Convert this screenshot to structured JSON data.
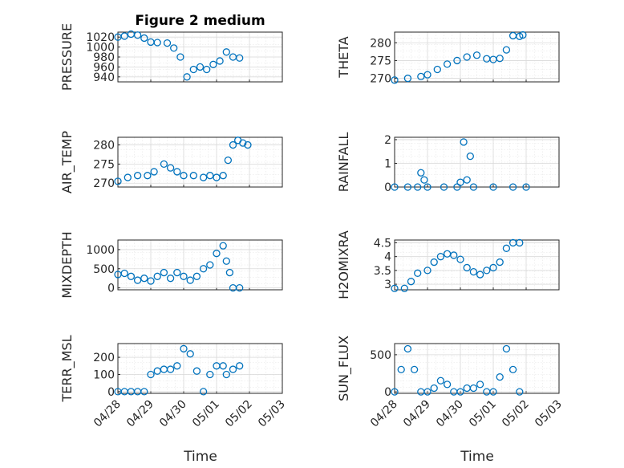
{
  "chart_data": [
    {
      "type": "scatter",
      "title": "Figure 2 medium",
      "ylabel": "PRESSURE",
      "xlabel": "",
      "ylim": [
        930,
        1030
      ],
      "yticks": [
        940,
        960,
        980,
        1000,
        1020
      ],
      "yticklabels": [
        "940",
        "960",
        "980",
        "1000",
        "1020"
      ],
      "xlim": [
        0,
        5
      ],
      "xticklabels": [
        "04/28",
        "04/29",
        "04/30",
        "05/01",
        "05/02",
        "05/03"
      ],
      "show_xticklabels": false,
      "grid": "on",
      "marker_color": "#0072bd",
      "series": [
        {
          "points": [
            [
              0,
              1020
            ],
            [
              0.2,
              1022
            ],
            [
              0.4,
              1026
            ],
            [
              0.6,
              1024
            ],
            [
              0.8,
              1018
            ],
            [
              1.0,
              1010
            ],
            [
              1.2,
              1009
            ],
            [
              1.5,
              1008
            ],
            [
              1.7,
              998
            ],
            [
              1.9,
              980
            ],
            [
              2.1,
              940
            ],
            [
              2.3,
              955
            ],
            [
              2.5,
              960
            ],
            [
              2.7,
              955
            ],
            [
              2.9,
              965
            ],
            [
              3.1,
              972
            ],
            [
              3.3,
              990
            ],
            [
              3.5,
              980
            ],
            [
              3.7,
              978
            ]
          ]
        }
      ]
    },
    {
      "type": "scatter",
      "ylabel": "THETA",
      "ylim": [
        269,
        283
      ],
      "yticks": [
        270,
        275,
        280
      ],
      "yticklabels": [
        "270",
        "275",
        "280"
      ],
      "xlim": [
        0,
        5
      ],
      "xticklabels": [
        "04/28",
        "04/29",
        "04/30",
        "05/01",
        "05/02",
        "05/03"
      ],
      "show_xticklabels": false,
      "grid": "on",
      "series": [
        {
          "points": [
            [
              0,
              269.5
            ],
            [
              0.4,
              270
            ],
            [
              0.8,
              270.5
            ],
            [
              1.0,
              271
            ],
            [
              1.3,
              272.5
            ],
            [
              1.6,
              274
            ],
            [
              1.9,
              275
            ],
            [
              2.2,
              276
            ],
            [
              2.5,
              276.5
            ],
            [
              2.8,
              275.5
            ],
            [
              3.0,
              275.3
            ],
            [
              3.2,
              275.6
            ],
            [
              3.4,
              278
            ],
            [
              3.6,
              282
            ],
            [
              3.8,
              281.8
            ],
            [
              3.9,
              282.2
            ]
          ]
        }
      ]
    },
    {
      "type": "scatter",
      "ylabel": "AIR_TEMP",
      "ylim": [
        269,
        282
      ],
      "yticks": [
        270,
        275,
        280
      ],
      "yticklabels": [
        "270",
        "275",
        "280"
      ],
      "xlim": [
        0,
        5
      ],
      "xticklabels": [
        "04/28",
        "04/29",
        "04/30",
        "05/01",
        "05/02",
        "05/03"
      ],
      "show_xticklabels": false,
      "grid": "on",
      "series": [
        {
          "points": [
            [
              0,
              270.5
            ],
            [
              0.3,
              271.5
            ],
            [
              0.6,
              272
            ],
            [
              0.9,
              272
            ],
            [
              1.1,
              273
            ],
            [
              1.4,
              275
            ],
            [
              1.6,
              274
            ],
            [
              1.8,
              273
            ],
            [
              2.0,
              272
            ],
            [
              2.3,
              272
            ],
            [
              2.6,
              271.5
            ],
            [
              2.8,
              272
            ],
            [
              3.0,
              271.5
            ],
            [
              3.2,
              272
            ],
            [
              3.35,
              276
            ],
            [
              3.5,
              280
            ],
            [
              3.65,
              281.2
            ],
            [
              3.8,
              280.5
            ],
            [
              3.95,
              280
            ]
          ]
        }
      ]
    },
    {
      "type": "scatter",
      "ylabel": "RAINFALL",
      "ylim": [
        0,
        2.1
      ],
      "yticks": [
        0,
        1,
        2
      ],
      "yticklabels": [
        "0",
        "1",
        "2"
      ],
      "xlim": [
        0,
        5
      ],
      "xticklabels": [
        "04/28",
        "04/29",
        "04/30",
        "05/01",
        "05/02",
        "05/03"
      ],
      "show_xticklabels": false,
      "grid": "on",
      "series": [
        {
          "points": [
            [
              0,
              0
            ],
            [
              0.4,
              0
            ],
            [
              0.7,
              0
            ],
            [
              0.8,
              0.6
            ],
            [
              0.9,
              0.3
            ],
            [
              1.0,
              0
            ],
            [
              1.5,
              0
            ],
            [
              1.9,
              0
            ],
            [
              2.0,
              0.2
            ],
            [
              2.1,
              1.9
            ],
            [
              2.2,
              0.3
            ],
            [
              2.3,
              1.3
            ],
            [
              2.4,
              0
            ],
            [
              3.0,
              0
            ],
            [
              3.6,
              0
            ],
            [
              4.0,
              0
            ]
          ]
        }
      ]
    },
    {
      "type": "scatter",
      "ylabel": "MIXDEPTH",
      "ylim": [
        -50,
        1250
      ],
      "yticks": [
        0,
        500,
        1000
      ],
      "yticklabels": [
        "0",
        "500",
        "1000"
      ],
      "xlim": [
        0,
        5
      ],
      "xticklabels": [
        "04/28",
        "04/29",
        "04/30",
        "05/01",
        "05/02",
        "05/03"
      ],
      "show_xticklabels": false,
      "grid": "on",
      "series": [
        {
          "points": [
            [
              0,
              350
            ],
            [
              0.2,
              380
            ],
            [
              0.4,
              300
            ],
            [
              0.6,
              200
            ],
            [
              0.8,
              250
            ],
            [
              1.0,
              180
            ],
            [
              1.2,
              300
            ],
            [
              1.4,
              400
            ],
            [
              1.6,
              250
            ],
            [
              1.8,
              400
            ],
            [
              2.0,
              300
            ],
            [
              2.2,
              200
            ],
            [
              2.4,
              300
            ],
            [
              2.6,
              500
            ],
            [
              2.8,
              600
            ],
            [
              3.0,
              900
            ],
            [
              3.2,
              1100
            ],
            [
              3.3,
              700
            ],
            [
              3.4,
              400
            ],
            [
              3.5,
              0
            ],
            [
              3.7,
              0
            ]
          ]
        }
      ]
    },
    {
      "type": "scatter",
      "ylabel": "H2OMIXRA",
      "ylim": [
        2.8,
        4.6
      ],
      "yticks": [
        3,
        3.5,
        4,
        4.5
      ],
      "yticklabels": [
        "3",
        "3.5",
        "4",
        "4.5"
      ],
      "xlim": [
        0,
        5
      ],
      "xticklabels": [
        "04/28",
        "04/29",
        "04/30",
        "05/01",
        "05/02",
        "05/03"
      ],
      "show_xticklabels": false,
      "grid": "on",
      "series": [
        {
          "points": [
            [
              0,
              2.85
            ],
            [
              0.3,
              2.85
            ],
            [
              0.5,
              3.1
            ],
            [
              0.7,
              3.4
            ],
            [
              1.0,
              3.5
            ],
            [
              1.2,
              3.8
            ],
            [
              1.4,
              4.0
            ],
            [
              1.6,
              4.1
            ],
            [
              1.8,
              4.05
            ],
            [
              2.0,
              3.9
            ],
            [
              2.2,
              3.6
            ],
            [
              2.4,
              3.45
            ],
            [
              2.6,
              3.35
            ],
            [
              2.8,
              3.5
            ],
            [
              3.0,
              3.6
            ],
            [
              3.2,
              3.8
            ],
            [
              3.4,
              4.3
            ],
            [
              3.6,
              4.5
            ],
            [
              3.8,
              4.5
            ]
          ]
        }
      ]
    },
    {
      "type": "scatter",
      "ylabel": "TERR_MSL",
      "ylim": [
        -10,
        280
      ],
      "yticks": [
        0,
        100,
        200
      ],
      "yticklabels": [
        "0",
        "100",
        "200"
      ],
      "xlim": [
        0,
        5
      ],
      "xticklabels": [
        "04/28",
        "04/29",
        "04/30",
        "05/01",
        "05/02",
        "05/03"
      ],
      "show_xticklabels": true,
      "grid": "on",
      "series": [
        {
          "points": [
            [
              0,
              0
            ],
            [
              0.2,
              0
            ],
            [
              0.4,
              0
            ],
            [
              0.6,
              0
            ],
            [
              0.8,
              0
            ],
            [
              1.0,
              100
            ],
            [
              1.2,
              120
            ],
            [
              1.4,
              130
            ],
            [
              1.6,
              130
            ],
            [
              1.8,
              150
            ],
            [
              2.0,
              250
            ],
            [
              2.2,
              220
            ],
            [
              2.4,
              120
            ],
            [
              2.6,
              0
            ],
            [
              2.8,
              100
            ],
            [
              3.0,
              150
            ],
            [
              3.2,
              150
            ],
            [
              3.3,
              100
            ],
            [
              3.5,
              130
            ],
            [
              3.7,
              150
            ]
          ]
        }
      ]
    },
    {
      "type": "scatter",
      "ylabel": "SUN_FLUX",
      "ylim": [
        -20,
        650
      ],
      "yticks": [
        0,
        500
      ],
      "yticklabels": [
        "0",
        "500"
      ],
      "xlim": [
        0,
        5
      ],
      "xticklabels": [
        "04/28",
        "04/29",
        "04/30",
        "05/01",
        "05/02",
        "05/03"
      ],
      "show_xticklabels": true,
      "grid": "on",
      "series": [
        {
          "points": [
            [
              0,
              0
            ],
            [
              0.2,
              300
            ],
            [
              0.4,
              580
            ],
            [
              0.6,
              300
            ],
            [
              0.8,
              0
            ],
            [
              1.0,
              0
            ],
            [
              1.2,
              50
            ],
            [
              1.4,
              150
            ],
            [
              1.6,
              100
            ],
            [
              1.8,
              0
            ],
            [
              2.0,
              0
            ],
            [
              2.2,
              50
            ],
            [
              2.4,
              50
            ],
            [
              2.6,
              100
            ],
            [
              2.8,
              0
            ],
            [
              3.0,
              0
            ],
            [
              3.2,
              200
            ],
            [
              3.4,
              580
            ],
            [
              3.6,
              300
            ],
            [
              3.8,
              0
            ]
          ]
        }
      ]
    }
  ],
  "xaxis_label": "Time"
}
